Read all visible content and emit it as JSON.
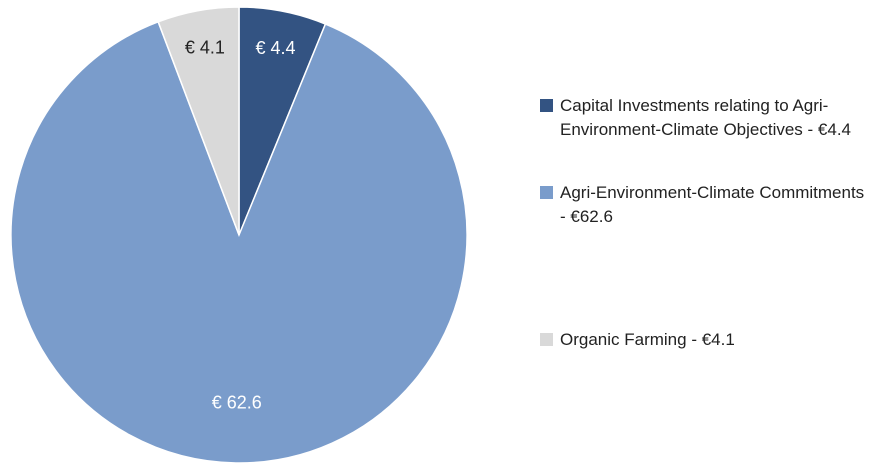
{
  "chart_data": {
    "type": "pie",
    "categories": [
      "Capital Investments relating to Agri-Environment-Climate Objectives - €4.4",
      "Agri-Environment-Climate Commitments - €62.6",
      "Organic Farming - €4.1"
    ],
    "values": [
      4.4,
      62.6,
      4.1
    ],
    "value_labels": [
      "€ 4.4",
      "€ 62.6",
      "€ 4.1"
    ],
    "colors": [
      "#335382",
      "#7a9ccb",
      "#d9d9d9"
    ],
    "legend": "right"
  }
}
